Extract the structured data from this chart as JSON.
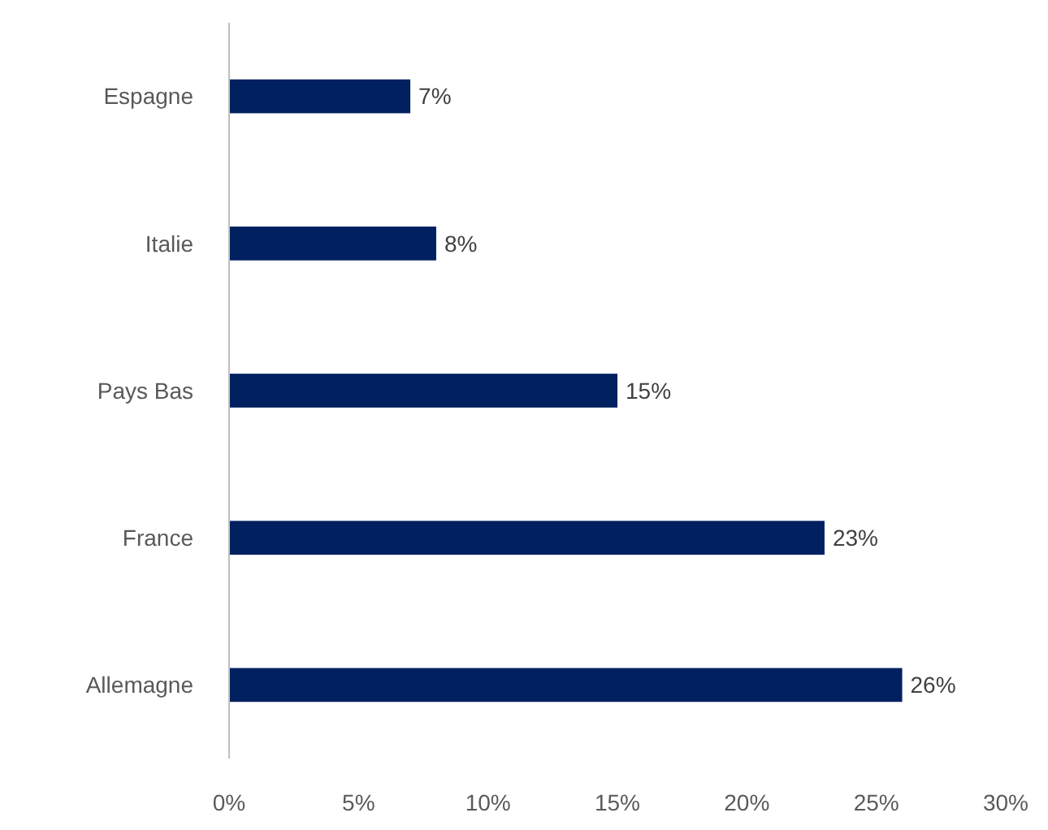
{
  "chart_data": {
    "type": "bar",
    "orientation": "horizontal",
    "categories": [
      "Espagne",
      "Italie",
      "Pays Bas",
      "France",
      "Allemagne"
    ],
    "values": [
      7,
      8,
      15,
      23,
      26
    ],
    "color": "#002060",
    "value_labels": [
      "7%",
      "8%",
      "15%",
      "23%",
      "26%"
    ],
    "xlim": [
      0,
      30
    ],
    "xticks": [
      {
        "value": 0,
        "label": "0%"
      },
      {
        "value": 5,
        "label": "5%"
      },
      {
        "value": 10,
        "label": "10%"
      },
      {
        "value": 15,
        "label": "15%"
      },
      {
        "value": 20,
        "label": "20%"
      },
      {
        "value": 25,
        "label": "25%"
      },
      {
        "value": 30,
        "label": "30%"
      }
    ],
    "grid": false
  }
}
